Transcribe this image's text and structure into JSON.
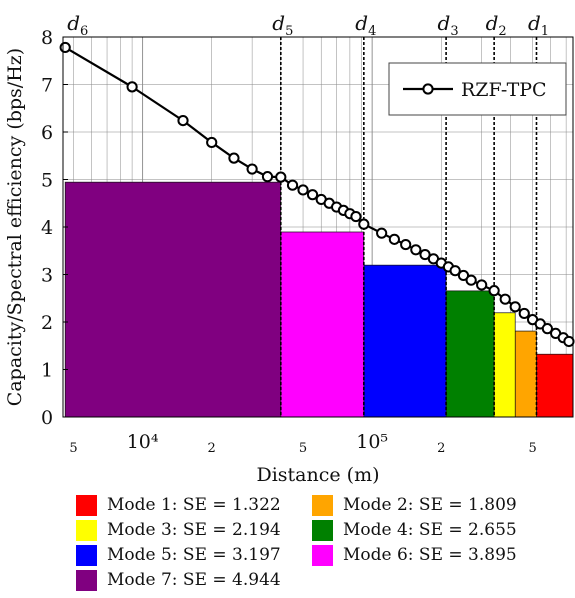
{
  "chart_data": {
    "type": "bar",
    "xlabel": "Distance (m)",
    "ylabel": "Capacity/Spectral efficiency (bps/Hz)",
    "xscale": "log",
    "xlim": [
      4500,
      750000
    ],
    "ylim": [
      0,
      8
    ],
    "yticks": [
      0,
      1,
      2,
      3,
      4,
      5,
      6,
      7,
      8
    ],
    "xticks": [
      {
        "value": 5000,
        "label": "5"
      },
      {
        "value": 10000,
        "label": "10⁴"
      },
      {
        "value": 20000,
        "label": "2"
      },
      {
        "value": 50000,
        "label": "5"
      },
      {
        "value": 100000,
        "label": "10⁵"
      },
      {
        "value": 200000,
        "label": "2"
      },
      {
        "value": 500000,
        "label": "5"
      }
    ],
    "grid": true,
    "thresholds": [
      {
        "label": "d6",
        "x": 4600
      },
      {
        "label": "d5",
        "x": 40000
      },
      {
        "label": "d4",
        "x": 92000
      },
      {
        "label": "d3",
        "x": 210000
      },
      {
        "label": "d2",
        "x": 340000
      },
      {
        "label": "d1",
        "x": 520000
      }
    ],
    "modes": [
      {
        "name": "Mode 1: SE = 1.322",
        "value": 1.322,
        "x_start": 520000,
        "x_end": 750000,
        "color": "#ff0000"
      },
      {
        "name": "Mode 2: SE = 1.809",
        "value": 1.809,
        "x_start": 420000,
        "x_end": 520000,
        "color": "#ffa500"
      },
      {
        "name": "Mode 3: SE = 2.194",
        "value": 2.194,
        "x_start": 340000,
        "x_end": 420000,
        "color": "#ffff00"
      },
      {
        "name": "Mode 4: SE = 2.655",
        "value": 2.655,
        "x_start": 210000,
        "x_end": 340000,
        "color": "#008000"
      },
      {
        "name": "Mode 5: SE = 3.197",
        "value": 3.197,
        "x_start": 92000,
        "x_end": 210000,
        "color": "#0000ff"
      },
      {
        "name": "Mode 6: SE = 3.895",
        "value": 3.895,
        "x_start": 40000,
        "x_end": 92000,
        "color": "#ff00ff"
      },
      {
        "name": "Mode 7: SE = 4.944",
        "value": 4.944,
        "x_start": 4600,
        "x_end": 40000,
        "color": "#800080"
      }
    ],
    "series": [
      {
        "name": "RZF-TPC",
        "color": "#000000",
        "x": [
          4600,
          9000,
          15000,
          20000,
          25000,
          30000,
          35000,
          40000,
          45000,
          50000,
          55000,
          60000,
          65000,
          70000,
          75000,
          80000,
          85000,
          92000,
          110000,
          125000,
          140000,
          155000,
          170000,
          185000,
          200000,
          215000,
          230000,
          250000,
          270000,
          300000,
          340000,
          380000,
          420000,
          460000,
          500000,
          540000,
          580000,
          630000,
          680000,
          720000
        ],
        "y": [
          7.78,
          6.95,
          6.24,
          5.78,
          5.45,
          5.22,
          5.06,
          5.05,
          4.88,
          4.78,
          4.68,
          4.58,
          4.5,
          4.42,
          4.35,
          4.28,
          4.22,
          4.06,
          3.87,
          3.74,
          3.63,
          3.52,
          3.42,
          3.33,
          3.24,
          3.16,
          3.08,
          2.98,
          2.88,
          2.78,
          2.66,
          2.48,
          2.32,
          2.18,
          2.05,
          1.96,
          1.86,
          1.76,
          1.67,
          1.59
        ]
      }
    ]
  }
}
